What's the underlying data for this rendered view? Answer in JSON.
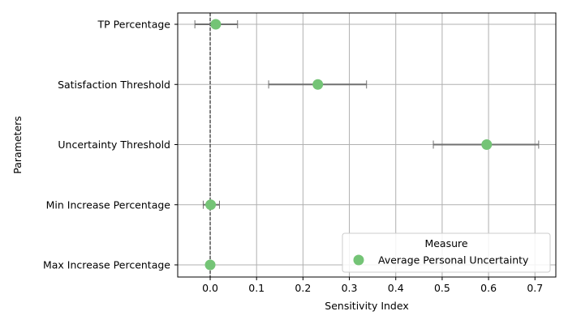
{
  "chart_data": {
    "type": "scatter",
    "xlabel": "Sensitivity Index",
    "ylabel": "Parameters",
    "xlim": [
      -0.07,
      0.745
    ],
    "xticks": [
      0.0,
      0.1,
      0.2,
      0.3,
      0.4,
      0.5,
      0.6,
      0.7
    ],
    "xtick_labels": [
      "0.0",
      "0.1",
      "0.2",
      "0.3",
      "0.4",
      "0.5",
      "0.6",
      "0.7"
    ],
    "grid": true,
    "reference_line_x": 0,
    "categories": [
      "TP Percentage",
      "Satisfaction Threshold",
      "Uncertainty Threshold",
      "Min Increase Percentage",
      "Max Increase Percentage"
    ],
    "series": [
      {
        "name": "Average Personal Uncertainty",
        "color": "#74c476",
        "values": [
          0.012,
          0.232,
          0.596,
          0.001,
          0.0
        ],
        "error_low": [
          -0.033,
          0.126,
          0.481,
          -0.015,
          null
        ],
        "error_high": [
          0.059,
          0.337,
          0.708,
          0.02,
          null
        ]
      }
    ],
    "legend": {
      "title": "Measure",
      "placement": "lower-right"
    }
  }
}
